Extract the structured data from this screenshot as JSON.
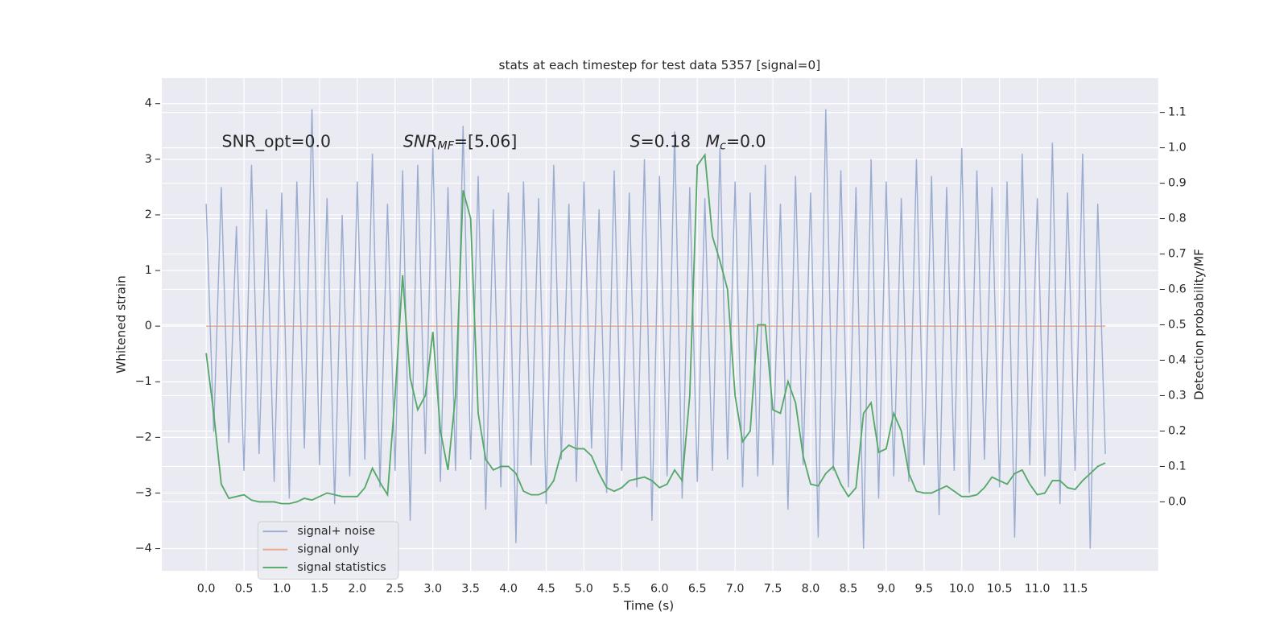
{
  "chart_data": {
    "type": "line",
    "title": "stats at each timestep for test data 5357 [signal=0]",
    "x_label": "Time (s)",
    "y_label": "Whitened strain",
    "y2_label": "Detection probability/MF",
    "annotations": [
      {
        "base": "SNR_opt=0.0"
      },
      {
        "base": "SNR",
        "sub": "MF",
        "tail": "=[5.06]"
      },
      {
        "base": "S",
        "tail": "=0.18"
      },
      {
        "base": "M",
        "sub": "c",
        "tail": "=0.0"
      }
    ],
    "grid": true,
    "legend": "lower left",
    "xlim": [
      -0.587,
      12.6
    ],
    "ylim": [
      -4.4,
      4.46
    ],
    "y2lim": [
      -0.195,
      1.197
    ],
    "xticks": [
      {
        "value": 0,
        "label": "0.0"
      },
      {
        "value": 0.5,
        "label": "0.5"
      },
      {
        "value": 1,
        "label": "1.0"
      },
      {
        "value": 1.5,
        "label": "1.5"
      },
      {
        "value": 2,
        "label": "2.0"
      },
      {
        "value": 2.5,
        "label": "2.5"
      },
      {
        "value": 3,
        "label": "3.0"
      },
      {
        "value": 3.5,
        "label": "3.5"
      },
      {
        "value": 4,
        "label": "4.0"
      },
      {
        "value": 4.5,
        "label": "4.5"
      },
      {
        "value": 5,
        "label": "5.0"
      },
      {
        "value": 5.5,
        "label": "5.5"
      },
      {
        "value": 6,
        "label": "6.0"
      },
      {
        "value": 6.5,
        "label": "6.5"
      },
      {
        "value": 7,
        "label": "7.0"
      },
      {
        "value": 7.5,
        "label": "7.5"
      },
      {
        "value": 8,
        "label": "8.0"
      },
      {
        "value": 8.5,
        "label": "8.5"
      },
      {
        "value": 9,
        "label": "9.0"
      },
      {
        "value": 9.5,
        "label": "9.5"
      },
      {
        "value": 10,
        "label": "10.0"
      },
      {
        "value": 10.5,
        "label": "10.5"
      },
      {
        "value": 11,
        "label": "11.0"
      },
      {
        "value": 11.5,
        "label": "11.5"
      }
    ],
    "yticks": [
      {
        "value": -4,
        "label": "−4"
      },
      {
        "value": -3,
        "label": "−3"
      },
      {
        "value": -2,
        "label": "−2"
      },
      {
        "value": -1,
        "label": "−1"
      },
      0,
      1,
      2,
      3,
      4
    ],
    "y2ticks": [
      {
        "value": 0,
        "label": "0.0"
      },
      {
        "value": 0.1,
        "label": "0.1"
      },
      {
        "value": 0.2,
        "label": "0.2"
      },
      {
        "value": 0.3,
        "label": "0.3"
      },
      {
        "value": 0.4,
        "label": "0.4"
      },
      {
        "value": 0.5,
        "label": "0.5"
      },
      {
        "value": 0.6,
        "label": "0.6"
      },
      {
        "value": 0.7,
        "label": "0.7"
      },
      {
        "value": 0.8,
        "label": "0.8"
      },
      {
        "value": 0.9,
        "label": "0.9"
      },
      {
        "value": 1,
        "label": "1.0"
      },
      {
        "value": 1.1,
        "label": "1.1"
      }
    ],
    "x": [
      0,
      0.1,
      0.2,
      0.3,
      0.4,
      0.5,
      0.6,
      0.7,
      0.8,
      0.9,
      1,
      1.1,
      1.2,
      1.3,
      1.4,
      1.5,
      1.6,
      1.7,
      1.8,
      1.9,
      2,
      2.1,
      2.2,
      2.3,
      2.4,
      2.5,
      2.6,
      2.7,
      2.8,
      2.9,
      3,
      3.1,
      3.2,
      3.3,
      3.4,
      3.5,
      3.6,
      3.7,
      3.8,
      3.9,
      4,
      4.1,
      4.2,
      4.3,
      4.4,
      4.5,
      4.6,
      4.7,
      4.8,
      4.9,
      5,
      5.1,
      5.2,
      5.3,
      5.4,
      5.5,
      5.6,
      5.7,
      5.8,
      5.9,
      6,
      6.1,
      6.2,
      6.3,
      6.4,
      6.5,
      6.6,
      6.7,
      6.8,
      6.9,
      7,
      7.1,
      7.2,
      7.3,
      7.4,
      7.5,
      7.6,
      7.7,
      7.8,
      7.9,
      8,
      8.1,
      8.2,
      8.3,
      8.4,
      8.5,
      8.6,
      8.7,
      8.8,
      8.9,
      9,
      9.1,
      9.2,
      9.3,
      9.4,
      9.5,
      9.6,
      9.7,
      9.8,
      9.9,
      10,
      10.1,
      10.2,
      10.3,
      10.4,
      10.5,
      10.6,
      10.7,
      10.8,
      10.9,
      11,
      11.1,
      11.2,
      11.3,
      11.4,
      11.5,
      11.6,
      11.7,
      11.8,
      11.9
    ],
    "series": [
      {
        "name": "signal+ noise",
        "color": "#9aaccf",
        "values": [
          2.2,
          -1.9,
          2.5,
          -2.1,
          1.8,
          -2.6,
          2.9,
          -2.3,
          2.1,
          -2.8,
          2.4,
          -3.1,
          2.6,
          -2.2,
          3.9,
          -2.5,
          2.3,
          -3.2,
          2.0,
          -2.7,
          2.6,
          -2.4,
          3.1,
          -2.9,
          2.2,
          -2.6,
          2.8,
          -3.5,
          2.9,
          -2.3,
          3.2,
          -2.8,
          2.5,
          -2.6,
          3.6,
          -2.4,
          2.7,
          -3.3,
          2.1,
          -2.9,
          2.4,
          -3.9,
          2.6,
          -2.5,
          2.3,
          -3.2,
          2.9,
          -2.4,
          2.2,
          -2.8,
          2.6,
          -2.2,
          2.1,
          -3.0,
          2.8,
          -2.6,
          2.4,
          -2.9,
          3.0,
          -3.5,
          2.7,
          -2.7,
          3.5,
          -3.1,
          2.5,
          -2.8,
          2.3,
          -2.6,
          3.2,
          -2.4,
          2.6,
          -2.9,
          2.4,
          -2.7,
          2.9,
          -2.5,
          2.2,
          -3.3,
          2.7,
          -2.5,
          2.4,
          -3.8,
          3.9,
          -2.6,
          2.8,
          -2.9,
          2.5,
          -4.0,
          3.0,
          -3.1,
          2.6,
          -2.7,
          2.3,
          -2.8,
          3.0,
          -2.5,
          2.7,
          -3.4,
          2.5,
          -2.6,
          3.2,
          -3.0,
          2.8,
          -2.4,
          2.5,
          -2.9,
          2.6,
          -3.8,
          3.1,
          -2.5,
          2.3,
          -2.7,
          3.3,
          -3.2,
          2.4,
          -2.6,
          3.1,
          -4.0,
          2.2,
          -2.3
        ]
      },
      {
        "name": "signal only",
        "color": "#e8a88a",
        "values": [
          0,
          0,
          0,
          0,
          0,
          0,
          0,
          0,
          0,
          0,
          0,
          0,
          0,
          0,
          0,
          0,
          0,
          0,
          0,
          0,
          0,
          0,
          0,
          0,
          0,
          0,
          0,
          0,
          0,
          0,
          0,
          0,
          0,
          0,
          0,
          0,
          0,
          0,
          0,
          0,
          0,
          0,
          0,
          0,
          0,
          0,
          0,
          0,
          0,
          0,
          0,
          0,
          0,
          0,
          0,
          0,
          0,
          0,
          0,
          0,
          0,
          0,
          0,
          0,
          0,
          0,
          0,
          0,
          0,
          0,
          0,
          0,
          0,
          0,
          0,
          0,
          0,
          0,
          0,
          0,
          0,
          0,
          0,
          0,
          0,
          0,
          0,
          0,
          0,
          0,
          0,
          0,
          0,
          0,
          0,
          0,
          0,
          0,
          0,
          0,
          0,
          0,
          0,
          0,
          0,
          0,
          0,
          0,
          0,
          0,
          0,
          0,
          0,
          0,
          0,
          0,
          0,
          0,
          0,
          0
        ]
      },
      {
        "name": "signal statistics",
        "color": "#55a868",
        "axis": "y2",
        "values": [
          0.42,
          0.25,
          0.05,
          0.01,
          0.015,
          0.02,
          0.005,
          0,
          0,
          0,
          -0.005,
          -0.005,
          0,
          0.01,
          0.005,
          0.015,
          0.025,
          0.02,
          0.015,
          0.015,
          0.015,
          0.04,
          0.095,
          0.055,
          0.02,
          0.3,
          0.64,
          0.35,
          0.26,
          0.3,
          0.48,
          0.2,
          0.09,
          0.3,
          0.88,
          0.8,
          0.25,
          0.12,
          0.09,
          0.1,
          0.1,
          0.08,
          0.03,
          0.02,
          0.02,
          0.03,
          0.06,
          0.14,
          0.16,
          0.15,
          0.15,
          0.13,
          0.08,
          0.04,
          0.03,
          0.04,
          0.06,
          0.065,
          0.07,
          0.06,
          0.04,
          0.05,
          0.09,
          0.06,
          0.3,
          0.95,
          0.98,
          0.75,
          0.68,
          0.6,
          0.3,
          0.17,
          0.2,
          0.5,
          0.5,
          0.26,
          0.25,
          0.34,
          0.28,
          0.13,
          0.05,
          0.045,
          0.08,
          0.1,
          0.05,
          0.015,
          0.04,
          0.25,
          0.28,
          0.14,
          0.15,
          0.25,
          0.2,
          0.08,
          0.03,
          0.025,
          0.025,
          0.035,
          0.045,
          0.03,
          0.015,
          0.015,
          0.02,
          0.04,
          0.07,
          0.06,
          0.05,
          0.08,
          0.09,
          0.05,
          0.02,
          0.025,
          0.06,
          0.06,
          0.04,
          0.035,
          0.06,
          0.08,
          0.1,
          0.11
        ]
      }
    ]
  }
}
